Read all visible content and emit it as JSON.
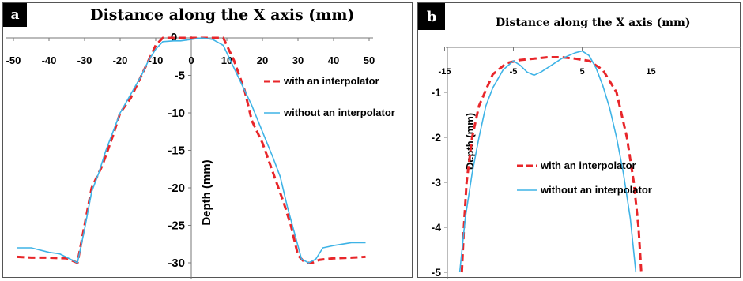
{
  "chart_data": [
    {
      "panel": "a",
      "type": "line",
      "title": "Distance along the X axis (mm)",
      "xlabel": "Distance along the X axis (mm)",
      "ylabel": "Depth (mm)",
      "xlim": [
        -50,
        50
      ],
      "ylim": [
        -30,
        0
      ],
      "xticks": [
        "-50",
        "-40",
        "-30",
        "-20",
        "-10",
        "0",
        "10",
        "20",
        "30",
        "40",
        "50"
      ],
      "yticks": [
        "0",
        "-5",
        "-10",
        "-15",
        "-20",
        "-25",
        "-30"
      ],
      "legend": "right",
      "series": [
        {
          "name": "with an interpolator",
          "color": "#e8262a",
          "dash": "dashed",
          "points": [
            [
              -49,
              -29.2
            ],
            [
              -45,
              -29.3
            ],
            [
              -40,
              -29.3
            ],
            [
              -35,
              -29.4
            ],
            [
              -33,
              -29.8
            ],
            [
              -32,
              -30
            ],
            [
              -30,
              -25
            ],
            [
              -28,
              -20
            ],
            [
              -25,
              -17
            ],
            [
              -22,
              -13
            ],
            [
              -20,
              -10
            ],
            [
              -17,
              -8
            ],
            [
              -14,
              -5
            ],
            [
              -12,
              -3
            ],
            [
              -10,
              -1
            ],
            [
              -8,
              0
            ],
            [
              -5,
              0
            ],
            [
              0,
              0
            ],
            [
              5,
              0
            ],
            [
              9,
              0
            ],
            [
              10,
              -1
            ],
            [
              12,
              -3
            ],
            [
              15,
              -7
            ],
            [
              17,
              -11
            ],
            [
              20,
              -14
            ],
            [
              23,
              -18
            ],
            [
              26,
              -22
            ],
            [
              28,
              -25
            ],
            [
              30,
              -29
            ],
            [
              32,
              -30
            ],
            [
              34,
              -30
            ],
            [
              36,
              -29.6
            ],
            [
              40,
              -29.4
            ],
            [
              45,
              -29.3
            ],
            [
              49,
              -29.2
            ]
          ]
        },
        {
          "name": "without an interpolator",
          "color": "#3eb3e6",
          "dash": "solid",
          "points": [
            [
              -49,
              -28
            ],
            [
              -45,
              -28
            ],
            [
              -40,
              -28.6
            ],
            [
              -37,
              -28.8
            ],
            [
              -34,
              -29.5
            ],
            [
              -32,
              -30
            ],
            [
              -30,
              -25.5
            ],
            [
              -28,
              -20.5
            ],
            [
              -26,
              -18
            ],
            [
              -24,
              -15
            ],
            [
              -22,
              -12.5
            ],
            [
              -20,
              -10
            ],
            [
              -17,
              -7.5
            ],
            [
              -14,
              -5
            ],
            [
              -12,
              -3
            ],
            [
              -10,
              -1.5
            ],
            [
              -8,
              -0.5
            ],
            [
              -5,
              -0.4
            ],
            [
              -3,
              -0.4
            ],
            [
              0,
              -0.2
            ],
            [
              3,
              0
            ],
            [
              6,
              -0.2
            ],
            [
              9,
              -1
            ],
            [
              11,
              -3
            ],
            [
              14,
              -6
            ],
            [
              17,
              -9
            ],
            [
              20,
              -12.5
            ],
            [
              23,
              -16
            ],
            [
              25,
              -18.5
            ],
            [
              27,
              -22.5
            ],
            [
              29,
              -26
            ],
            [
              31,
              -29.5
            ],
            [
              33,
              -30
            ],
            [
              35,
              -29.5
            ],
            [
              37,
              -28
            ],
            [
              40,
              -27.7
            ],
            [
              45,
              -27.3
            ],
            [
              49,
              -27.3
            ]
          ]
        }
      ]
    },
    {
      "panel": "b",
      "type": "line",
      "title": "Distance along the X axis (mm)",
      "xlabel": "Distance along the X axis (mm)",
      "ylabel": "Depth (mm)",
      "xlim": [
        -15,
        15
      ],
      "ylim": [
        -5,
        0
      ],
      "xticks": [
        "-15",
        "-5",
        "5",
        "15"
      ],
      "yticks": [
        "-1",
        "-2",
        "-3",
        "-4",
        "-5"
      ],
      "legend": "center",
      "series": [
        {
          "name": "with an interpolator",
          "color": "#e8262a",
          "dash": "dashed",
          "points": [
            [
              -12.5,
              -5
            ],
            [
              -12.2,
              -4
            ],
            [
              -11.8,
              -3
            ],
            [
              -11,
              -2
            ],
            [
              -10,
              -1.3
            ],
            [
              -8,
              -0.6
            ],
            [
              -6,
              -0.35
            ],
            [
              -4,
              -0.28
            ],
            [
              -2,
              -0.25
            ],
            [
              0,
              -0.22
            ],
            [
              2,
              -0.22
            ],
            [
              4,
              -0.25
            ],
            [
              6,
              -0.3
            ],
            [
              8,
              -0.5
            ],
            [
              10,
              -1
            ],
            [
              11.5,
              -2
            ],
            [
              12.5,
              -3
            ],
            [
              13.2,
              -4
            ],
            [
              13.6,
              -5
            ]
          ]
        },
        {
          "name": "without an interpolator",
          "color": "#3eb3e6",
          "dash": "solid",
          "points": [
            [
              -12.8,
              -5
            ],
            [
              -12,
              -3.8
            ],
            [
              -11,
              -2.8
            ],
            [
              -10,
              -2
            ],
            [
              -9,
              -1.3
            ],
            [
              -8,
              -0.9
            ],
            [
              -6.5,
              -0.5
            ],
            [
              -5,
              -0.3
            ],
            [
              -4,
              -0.4
            ],
            [
              -3,
              -0.55
            ],
            [
              -2,
              -0.62
            ],
            [
              -1,
              -0.55
            ],
            [
              0,
              -0.45
            ],
            [
              2,
              -0.25
            ],
            [
              4,
              -0.12
            ],
            [
              5,
              -0.08
            ],
            [
              6,
              -0.18
            ],
            [
              7,
              -0.45
            ],
            [
              8,
              -0.85
            ],
            [
              9,
              -1.35
            ],
            [
              10,
              -2
            ],
            [
              11,
              -2.8
            ],
            [
              12,
              -3.8
            ],
            [
              12.8,
              -5
            ]
          ]
        }
      ]
    }
  ]
}
